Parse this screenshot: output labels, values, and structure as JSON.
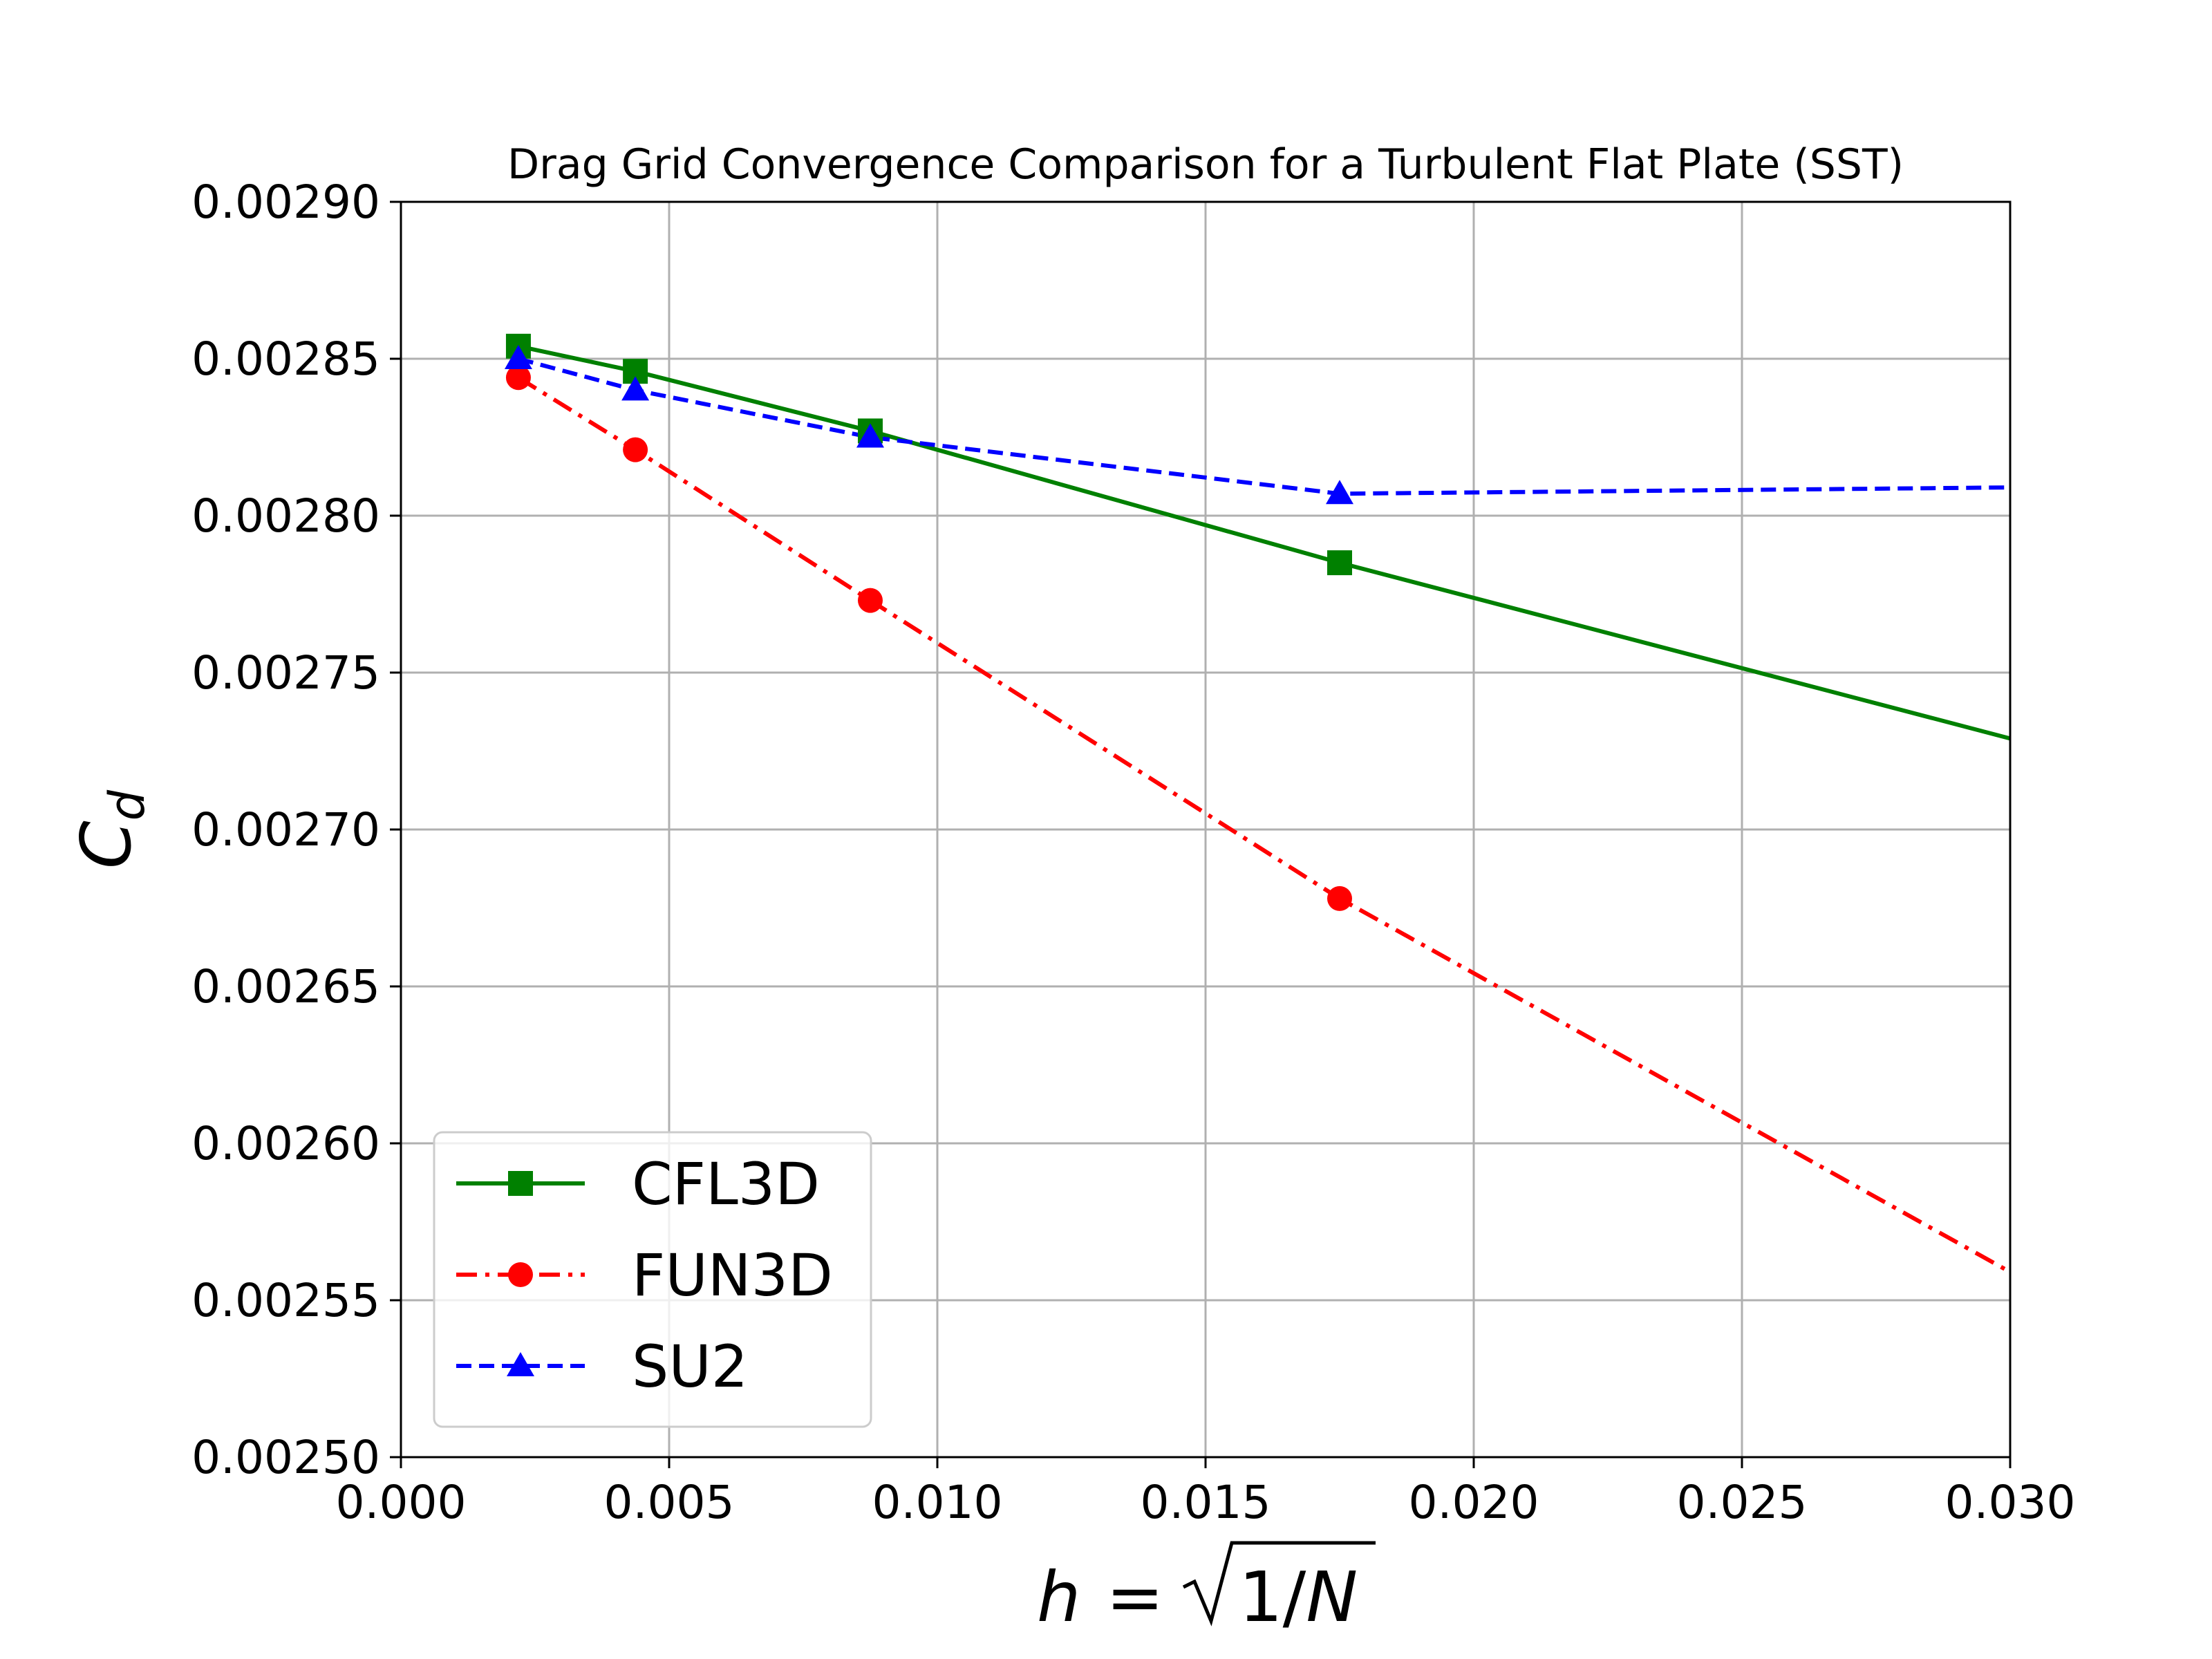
{
  "chart_data": {
    "type": "line",
    "title": "Drag Grid Convergence Comparison for a Turbulent Flat Plate (SST)",
    "xlabel": {
      "lhs": "h",
      "eq": "=",
      "frac": "1/N"
    },
    "ylabel": {
      "main": "C",
      "sub": "d"
    },
    "xlim": [
      0.0,
      0.03
    ],
    "ylim": [
      0.0025,
      0.0029
    ],
    "xticks": [
      0.0,
      0.005,
      0.01,
      0.015,
      0.02,
      0.025,
      0.03
    ],
    "xtick_labels": [
      "0.000",
      "0.005",
      "0.010",
      "0.015",
      "0.020",
      "0.025",
      "0.030"
    ],
    "yticks": [
      0.0025,
      0.00255,
      0.0026,
      0.00265,
      0.0027,
      0.00275,
      0.0028,
      0.00285,
      0.0029
    ],
    "ytick_labels": [
      "0.00250",
      "0.00255",
      "0.00260",
      "0.00265",
      "0.00270",
      "0.00275",
      "0.00280",
      "0.00285",
      "0.00290"
    ],
    "grid": true,
    "legend_position": "lower-left",
    "series": [
      {
        "name": "CFL3D",
        "color": "#008000",
        "linestyle": "solid",
        "marker": "square",
        "points": [
          [
            0.00219,
            0.002854
          ],
          [
            0.00437,
            0.002846
          ],
          [
            0.00875,
            0.002827
          ],
          [
            0.0175,
            0.002785
          ]
        ],
        "line_extends_to": [
          0.03,
          0.002729
        ]
      },
      {
        "name": "FUN3D",
        "color": "#ff0000",
        "linestyle": "dashdot",
        "marker": "circle",
        "points": [
          [
            0.00219,
            0.002844
          ],
          [
            0.00437,
            0.002821
          ],
          [
            0.00875,
            0.002773
          ],
          [
            0.0175,
            0.002678
          ]
        ],
        "line_extends_to": [
          0.03,
          0.002559
        ]
      },
      {
        "name": "SU2",
        "color": "#0000ff",
        "linestyle": "dashed",
        "marker": "triangle",
        "points": [
          [
            0.00219,
            0.00285
          ],
          [
            0.00437,
            0.00284
          ],
          [
            0.00875,
            0.002825
          ],
          [
            0.0175,
            0.002807
          ]
        ],
        "line_extends_to": [
          0.03,
          0.002809
        ]
      }
    ]
  }
}
